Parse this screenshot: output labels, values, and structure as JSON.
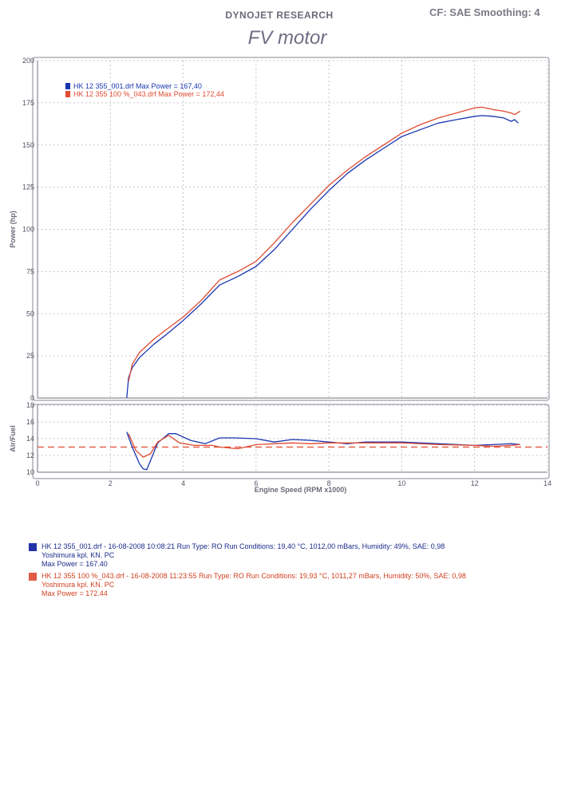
{
  "header": {
    "company": "DYNOJET RESEARCH",
    "settings": "CF: SAE  Smoothing: 4",
    "title": "FV motor"
  },
  "chart_data": [
    {
      "type": "line",
      "xlabel": "",
      "ylabel": "Power (hp)",
      "xlim": [
        0,
        14
      ],
      "ylim": [
        0,
        200
      ],
      "yticks": [
        "0",
        "25",
        "50",
        "75",
        "100",
        "125",
        "150",
        "175",
        "200"
      ],
      "xticks": [
        "0",
        "2",
        "4",
        "6",
        "8",
        "10",
        "12",
        "14"
      ],
      "grid": true,
      "legend_position": "top-left",
      "legend": [
        "HK 12 355_001.drf Max Power = 167,40",
        "HK 12 355  100 %_043.drf Max Power = 172,44"
      ],
      "series": [
        {
          "name": "HK 12 355_001.drf Max Power = 167,40",
          "color": "#1a35b0",
          "x": [
            2.45,
            2.5,
            2.6,
            2.8,
            3.0,
            3.2,
            3.5,
            4.0,
            4.5,
            5.0,
            5.5,
            6.0,
            6.5,
            7.0,
            7.5,
            8.0,
            8.5,
            9.0,
            9.5,
            10.0,
            10.5,
            11.0,
            11.5,
            12.0,
            12.2,
            12.5,
            12.8,
            13.0,
            13.1,
            13.2
          ],
          "y": [
            0,
            12,
            18,
            24,
            28,
            32,
            37,
            46,
            56,
            67,
            72,
            78,
            88,
            100,
            112,
            123,
            133,
            141,
            148,
            155,
            159,
            163,
            165,
            167,
            167.4,
            167,
            166,
            164,
            165,
            163
          ]
        },
        {
          "name": "HK 12 355  100 %_043.drf Max Power = 172,44",
          "color": "#e04a30",
          "x": [
            2.5,
            2.6,
            2.8,
            3.0,
            3.2,
            3.5,
            4.0,
            4.5,
            5.0,
            5.5,
            6.0,
            6.5,
            7.0,
            7.5,
            8.0,
            8.5,
            9.0,
            9.5,
            10.0,
            10.5,
            11.0,
            11.5,
            12.0,
            12.2,
            12.5,
            12.8,
            13.0,
            13.1,
            13.25
          ],
          "y": [
            10,
            20,
            27,
            31,
            35,
            40,
            48,
            58,
            70,
            75,
            81,
            92,
            104,
            115,
            126,
            135,
            143,
            150,
            157,
            162,
            166,
            169,
            172,
            172.4,
            171,
            170,
            169,
            168,
            170
          ]
        }
      ]
    },
    {
      "type": "line",
      "xlabel": "Engine Speed (RPM x1000)",
      "ylabel": "Air/Fuel",
      "xlim": [
        0,
        14
      ],
      "ylim": [
        10,
        18
      ],
      "yticks": [
        "10",
        "12",
        "14",
        "16",
        "18"
      ],
      "xticks": [
        "0",
        "2",
        "4",
        "6",
        "8",
        "10",
        "12",
        "14"
      ],
      "grid": true,
      "reference_line": 13.0,
      "series": [
        {
          "name": "HK 12 355_001.drf Max Power = 167,40",
          "color": "#1a35b0",
          "x": [
            2.45,
            2.6,
            2.8,
            2.9,
            3.0,
            3.3,
            3.6,
            3.8,
            4.2,
            4.6,
            5.0,
            5.4,
            6.0,
            6.5,
            7.0,
            7.5,
            8.0,
            8.5,
            9.0,
            10.0,
            11.0,
            12.0,
            12.5,
            13.0,
            13.25
          ],
          "y": [
            14.8,
            13.0,
            11.0,
            10.4,
            10.3,
            13.5,
            14.6,
            14.6,
            13.8,
            13.4,
            14.1,
            14.1,
            14.0,
            13.6,
            13.9,
            13.8,
            13.6,
            13.4,
            13.6,
            13.6,
            13.4,
            13.2,
            13.3,
            13.4,
            13.3
          ]
        },
        {
          "name": "HK 12 355  100 %_043.drf Max Power = 172,44",
          "color": "#e04a30",
          "x": [
            2.5,
            2.7,
            2.9,
            3.1,
            3.3,
            3.6,
            3.9,
            4.3,
            4.8,
            5.0,
            5.5,
            6.0,
            6.5,
            7.0,
            7.5,
            8.0,
            9.0,
            10.0,
            11.0,
            12.0,
            12.5,
            13.0,
            13.25
          ],
          "y": [
            14.6,
            12.6,
            11.8,
            12.2,
            13.6,
            14.4,
            13.5,
            13.2,
            13.2,
            13.0,
            12.8,
            13.3,
            13.4,
            13.5,
            13.4,
            13.5,
            13.5,
            13.5,
            13.3,
            13.2,
            13.1,
            13.2,
            13.3
          ]
        }
      ]
    }
  ],
  "runs": [
    {
      "color": "#2233a8",
      "line1": "HK 12 355_001.drf - 16-08-2008 10:08:21  Run Type: RO  Run Conditions: 19,40 °C, 1012,00 mBars,  Humidity:  49%, SAE: 0,98",
      "line2": "Yoshimura kpl. KN. PC",
      "line3": "Max Power = 167.40"
    },
    {
      "color": "#e05a44",
      "line1": "HK 12 355  100 %_043.drf - 16-08-2008 11:23:55  Run Type: RO  Run Conditions: 19,93 °C, 1011,27 mBars,  Humidity:  50%, SAE: 0,98",
      "line2": "Yoshimura kpl. KN. PC",
      "line3": "Max Power = 172.44"
    }
  ]
}
